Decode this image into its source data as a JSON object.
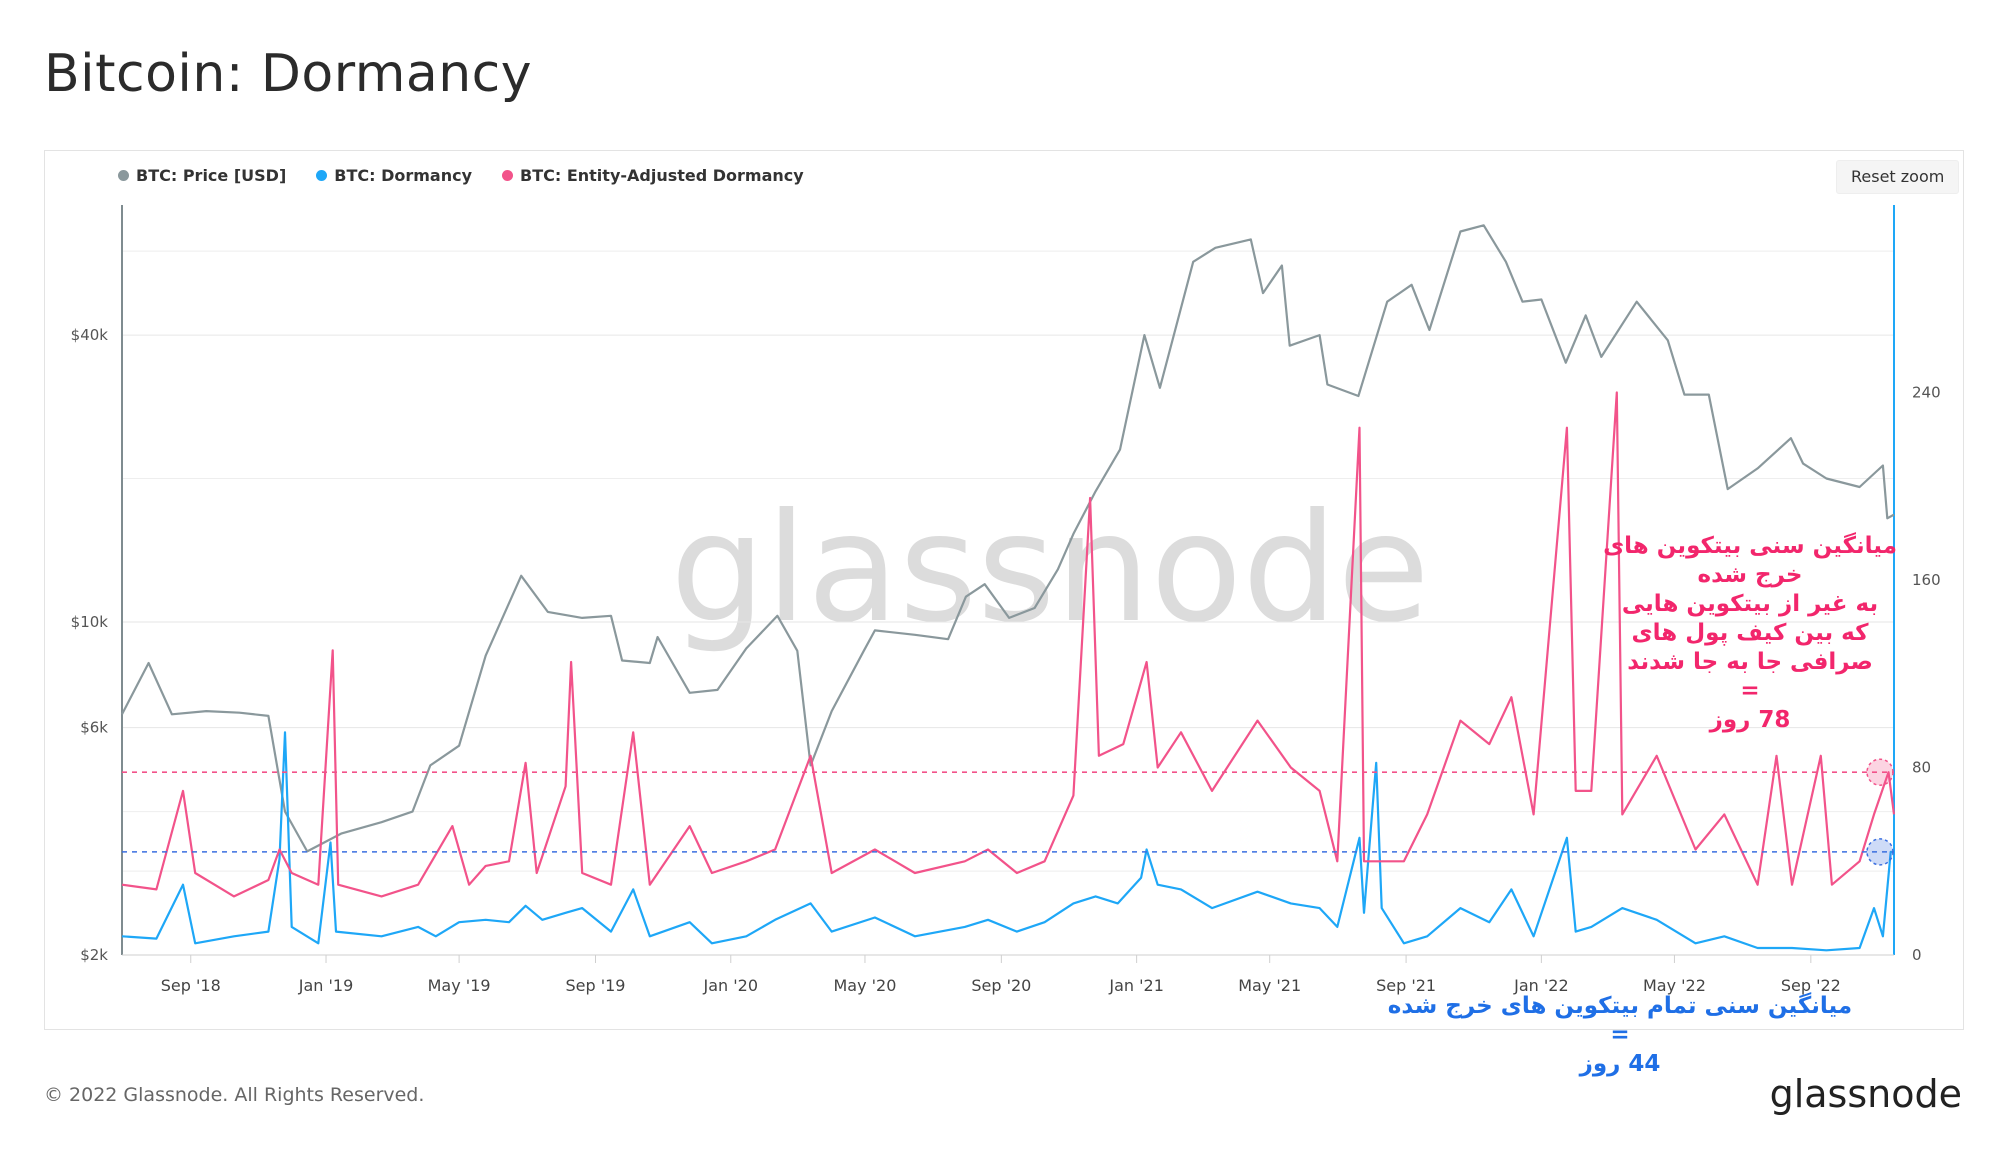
{
  "title": "Bitcoin: Dormancy",
  "legend": {
    "items": [
      {
        "label": "BTC: Price [USD]",
        "color": "#8a989c"
      },
      {
        "label": "BTC: Dormancy",
        "color": "#1ea7f7"
      },
      {
        "label": "BTC: Entity-Adjusted Dormancy",
        "color": "#f2538a"
      }
    ]
  },
  "toolbar": {
    "reset_zoom_label": "Reset zoom"
  },
  "footer": {
    "copyright": "© 2022 Glassnode. All Rights Reserved.",
    "logo": "glassnode"
  },
  "watermark": "glassnode",
  "annotations": {
    "pink": {
      "lines": [
        "میانگین سنی بیتکوین های",
        "خرج شده",
        "به غیر از بیتکوین هایی",
        "که بین کیف پول های",
        "صرافی جا به جا  شدند",
        "=",
        "78 روز"
      ],
      "color": "#f2266c"
    },
    "blue": {
      "lines": [
        "میانگین سنی تمام بیتکوین های خرج شده",
        "=",
        "44 روز"
      ],
      "color": "#1f6fe6"
    }
  },
  "chart_data": {
    "type": "line",
    "x_range": [
      "2018-07-01",
      "2022-11-15"
    ],
    "x_ticks": [
      "Sep '18",
      "Jan '19",
      "May '19",
      "Sep '19",
      "Jan '20",
      "May '20",
      "Sep '20",
      "Jan '21",
      "May '21",
      "Sep '21",
      "Jan '22",
      "May '22",
      "Sep '22"
    ],
    "y_left": {
      "scale": "log",
      "ticks": [
        "$2k",
        "$6k",
        "$10k",
        "$40k"
      ],
      "tick_values": [
        2000,
        6000,
        10000,
        40000
      ],
      "range": [
        2000,
        75000
      ]
    },
    "y_right": {
      "scale": "linear",
      "ticks": [
        "0",
        "80",
        "160",
        "240"
      ],
      "tick_values": [
        0,
        80,
        160,
        240
      ],
      "range": [
        0,
        320
      ]
    },
    "reference_lines": [
      {
        "value": 78,
        "axis": "right",
        "color": "#f2538a",
        "style": "dashed"
      },
      {
        "value": 44,
        "axis": "right",
        "color": "#3b6fe0",
        "style": "dashed"
      }
    ],
    "series": [
      {
        "name": "BTC: Price [USD]",
        "axis": "left",
        "color": "#8a989c",
        "points": [
          [
            "2018-07-01",
            6400
          ],
          [
            "2018-07-25",
            8200
          ],
          [
            "2018-08-15",
            6400
          ],
          [
            "2018-09-15",
            6500
          ],
          [
            "2018-10-15",
            6450
          ],
          [
            "2018-11-10",
            6350
          ],
          [
            "2018-11-25",
            4000
          ],
          [
            "2018-12-15",
            3300
          ],
          [
            "2019-01-15",
            3600
          ],
          [
            "2019-02-20",
            3800
          ],
          [
            "2019-03-20",
            4000
          ],
          [
            "2019-04-05",
            5000
          ],
          [
            "2019-05-01",
            5500
          ],
          [
            "2019-05-25",
            8500
          ],
          [
            "2019-06-26",
            12500
          ],
          [
            "2019-07-20",
            10500
          ],
          [
            "2019-08-20",
            10200
          ],
          [
            "2019-09-15",
            10300
          ],
          [
            "2019-09-25",
            8300
          ],
          [
            "2019-10-20",
            8200
          ],
          [
            "2019-10-27",
            9300
          ],
          [
            "2019-11-25",
            7100
          ],
          [
            "2019-12-20",
            7200
          ],
          [
            "2020-01-15",
            8800
          ],
          [
            "2020-02-12",
            10300
          ],
          [
            "2020-03-01",
            8700
          ],
          [
            "2020-03-13",
            5000
          ],
          [
            "2020-04-01",
            6500
          ],
          [
            "2020-04-30",
            8700
          ],
          [
            "2020-05-10",
            9600
          ],
          [
            "2020-06-15",
            9400
          ],
          [
            "2020-07-15",
            9200
          ],
          [
            "2020-07-31",
            11300
          ],
          [
            "2020-08-17",
            12000
          ],
          [
            "2020-09-08",
            10200
          ],
          [
            "2020-10-01",
            10700
          ],
          [
            "2020-10-22",
            12900
          ],
          [
            "2020-11-05",
            15300
          ],
          [
            "2020-11-25",
            18800
          ],
          [
            "2020-12-17",
            23000
          ],
          [
            "2021-01-08",
            40000
          ],
          [
            "2021-01-22",
            31000
          ],
          [
            "2021-02-21",
            57000
          ],
          [
            "2021-03-13",
            61000
          ],
          [
            "2021-04-14",
            63500
          ],
          [
            "2021-04-25",
            49000
          ],
          [
            "2021-05-12",
            56000
          ],
          [
            "2021-05-19",
            38000
          ],
          [
            "2021-06-15",
            40000
          ],
          [
            "2021-06-22",
            31500
          ],
          [
            "2021-07-20",
            29800
          ],
          [
            "2021-08-15",
            47000
          ],
          [
            "2021-09-06",
            51000
          ],
          [
            "2021-09-22",
            41000
          ],
          [
            "2021-10-20",
            66000
          ],
          [
            "2021-11-10",
            68000
          ],
          [
            "2021-11-30",
            57000
          ],
          [
            "2021-12-15",
            47000
          ],
          [
            "2022-01-01",
            47500
          ],
          [
            "2022-01-23",
            35000
          ],
          [
            "2022-02-10",
            44000
          ],
          [
            "2022-02-24",
            36000
          ],
          [
            "2022-03-28",
            47000
          ],
          [
            "2022-04-25",
            39000
          ],
          [
            "2022-05-10",
            30000
          ],
          [
            "2022-06-01",
            30000
          ],
          [
            "2022-06-18",
            19000
          ],
          [
            "2022-07-15",
            21000
          ],
          [
            "2022-08-14",
            24300
          ],
          [
            "2022-08-25",
            21500
          ],
          [
            "2022-09-15",
            20000
          ],
          [
            "2022-10-15",
            19200
          ],
          [
            "2022-11-05",
            21300
          ],
          [
            "2022-11-09",
            16500
          ],
          [
            "2022-11-15",
            16800
          ]
        ]
      },
      {
        "name": "BTC: Dormancy",
        "axis": "right",
        "color": "#1ea7f7",
        "points": [
          [
            "2018-07-01",
            8
          ],
          [
            "2018-08-01",
            7
          ],
          [
            "2018-08-25",
            30
          ],
          [
            "2018-09-05",
            5
          ],
          [
            "2018-10-10",
            8
          ],
          [
            "2018-11-10",
            10
          ],
          [
            "2018-11-20",
            41
          ],
          [
            "2018-11-25",
            95
          ],
          [
            "2018-12-01",
            12
          ],
          [
            "2018-12-25",
            5
          ],
          [
            "2019-01-05",
            48
          ],
          [
            "2019-01-10",
            10
          ],
          [
            "2019-02-20",
            8
          ],
          [
            "2019-03-25",
            12
          ],
          [
            "2019-04-10",
            8
          ],
          [
            "2019-05-01",
            14
          ],
          [
            "2019-05-25",
            15
          ],
          [
            "2019-06-15",
            14
          ],
          [
            "2019-06-30",
            21
          ],
          [
            "2019-07-15",
            15
          ],
          [
            "2019-08-05",
            18
          ],
          [
            "2019-08-20",
            20
          ],
          [
            "2019-09-15",
            10
          ],
          [
            "2019-10-05",
            28
          ],
          [
            "2019-10-20",
            8
          ],
          [
            "2019-11-25",
            14
          ],
          [
            "2019-12-15",
            5
          ],
          [
            "2020-01-15",
            8
          ],
          [
            "2020-02-10",
            15
          ],
          [
            "2020-03-13",
            22
          ],
          [
            "2020-04-01",
            10
          ],
          [
            "2020-05-10",
            16
          ],
          [
            "2020-06-15",
            8
          ],
          [
            "2020-07-30",
            12
          ],
          [
            "2020-08-20",
            15
          ],
          [
            "2020-09-15",
            10
          ],
          [
            "2020-10-10",
            14
          ],
          [
            "2020-11-05",
            22
          ],
          [
            "2020-11-25",
            25
          ],
          [
            "2020-12-15",
            22
          ],
          [
            "2021-01-05",
            33
          ],
          [
            "2021-01-10",
            45
          ],
          [
            "2021-01-20",
            30
          ],
          [
            "2021-02-10",
            28
          ],
          [
            "2021-03-10",
            20
          ],
          [
            "2021-04-20",
            27
          ],
          [
            "2021-05-20",
            22
          ],
          [
            "2021-06-15",
            20
          ],
          [
            "2021-07-01",
            12
          ],
          [
            "2021-07-21",
            50
          ],
          [
            "2021-07-25",
            18
          ],
          [
            "2021-08-05",
            82
          ],
          [
            "2021-08-10",
            20
          ],
          [
            "2021-08-30",
            5
          ],
          [
            "2021-09-20",
            8
          ],
          [
            "2021-10-20",
            20
          ],
          [
            "2021-11-15",
            14
          ],
          [
            "2021-12-05",
            28
          ],
          [
            "2021-12-25",
            8
          ],
          [
            "2022-01-24",
            50
          ],
          [
            "2022-02-01",
            10
          ],
          [
            "2022-02-15",
            12
          ],
          [
            "2022-03-15",
            20
          ],
          [
            "2022-04-15",
            15
          ],
          [
            "2022-05-20",
            5
          ],
          [
            "2022-06-15",
            8
          ],
          [
            "2022-07-15",
            3
          ],
          [
            "2022-08-15",
            3
          ],
          [
            "2022-09-15",
            2
          ],
          [
            "2022-10-15",
            3
          ],
          [
            "2022-10-28",
            20
          ],
          [
            "2022-11-05",
            8
          ],
          [
            "2022-11-12",
            44
          ],
          [
            "2022-11-15",
            44
          ]
        ]
      },
      {
        "name": "BTC: Entity-Adjusted Dormancy",
        "axis": "right",
        "color": "#f2538a",
        "points": [
          [
            "2018-07-01",
            30
          ],
          [
            "2018-08-01",
            28
          ],
          [
            "2018-08-25",
            70
          ],
          [
            "2018-09-05",
            35
          ],
          [
            "2018-10-10",
            25
          ],
          [
            "2018-11-10",
            32
          ],
          [
            "2018-11-20",
            45
          ],
          [
            "2018-12-01",
            35
          ],
          [
            "2018-12-25",
            30
          ],
          [
            "2019-01-07",
            130
          ],
          [
            "2019-01-12",
            30
          ],
          [
            "2019-02-20",
            25
          ],
          [
            "2019-03-25",
            30
          ],
          [
            "2019-04-25",
            55
          ],
          [
            "2019-05-10",
            30
          ],
          [
            "2019-05-25",
            38
          ],
          [
            "2019-06-15",
            40
          ],
          [
            "2019-06-30",
            82
          ],
          [
            "2019-07-10",
            35
          ],
          [
            "2019-08-05",
            72
          ],
          [
            "2019-08-10",
            125
          ],
          [
            "2019-08-20",
            35
          ],
          [
            "2019-09-15",
            30
          ],
          [
            "2019-10-05",
            95
          ],
          [
            "2019-10-20",
            30
          ],
          [
            "2019-11-25",
            55
          ],
          [
            "2019-12-15",
            35
          ],
          [
            "2020-01-15",
            40
          ],
          [
            "2020-02-10",
            45
          ],
          [
            "2020-03-13",
            85
          ],
          [
            "2020-04-01",
            35
          ],
          [
            "2020-05-10",
            45
          ],
          [
            "2020-06-15",
            35
          ],
          [
            "2020-07-30",
            40
          ],
          [
            "2020-08-20",
            45
          ],
          [
            "2020-09-15",
            35
          ],
          [
            "2020-10-10",
            40
          ],
          [
            "2020-11-05",
            68
          ],
          [
            "2020-11-20",
            195
          ],
          [
            "2020-11-28",
            85
          ],
          [
            "2020-12-20",
            90
          ],
          [
            "2021-01-10",
            125
          ],
          [
            "2021-01-20",
            80
          ],
          [
            "2021-02-10",
            95
          ],
          [
            "2021-03-10",
            70
          ],
          [
            "2021-04-20",
            100
          ],
          [
            "2021-05-20",
            80
          ],
          [
            "2021-06-15",
            70
          ],
          [
            "2021-07-01",
            40
          ],
          [
            "2021-07-21",
            225
          ],
          [
            "2021-07-25",
            40
          ],
          [
            "2021-08-30",
            40
          ],
          [
            "2021-09-20",
            60
          ],
          [
            "2021-10-20",
            100
          ],
          [
            "2021-11-15",
            90
          ],
          [
            "2021-12-05",
            110
          ],
          [
            "2021-12-25",
            60
          ],
          [
            "2022-01-24",
            225
          ],
          [
            "2022-02-01",
            70
          ],
          [
            "2022-02-15",
            70
          ],
          [
            "2022-03-10",
            240
          ],
          [
            "2022-03-15",
            60
          ],
          [
            "2022-04-15",
            85
          ],
          [
            "2022-05-20",
            45
          ],
          [
            "2022-06-15",
            60
          ],
          [
            "2022-07-15",
            30
          ],
          [
            "2022-08-01",
            85
          ],
          [
            "2022-08-15",
            30
          ],
          [
            "2022-09-10",
            85
          ],
          [
            "2022-09-20",
            30
          ],
          [
            "2022-10-15",
            40
          ],
          [
            "2022-10-28",
            60
          ],
          [
            "2022-11-10",
            78
          ],
          [
            "2022-11-15",
            60
          ]
        ]
      }
    ]
  }
}
